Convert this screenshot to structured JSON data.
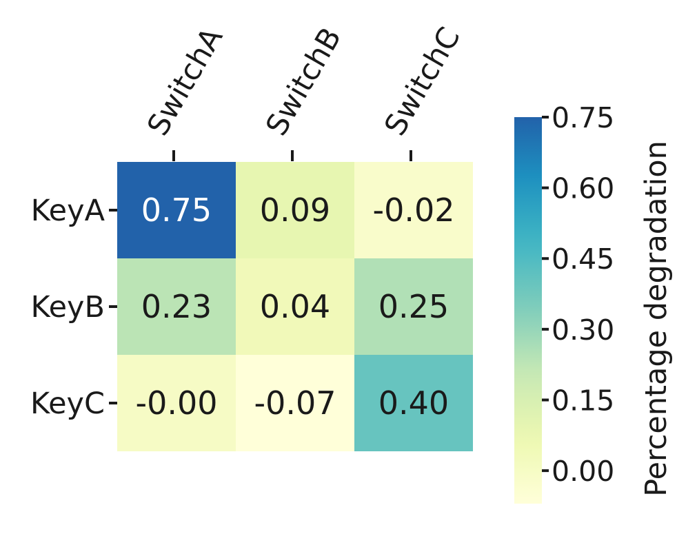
{
  "chart_data": {
    "type": "heatmap",
    "rows": [
      "KeyA",
      "KeyB",
      "KeyC"
    ],
    "columns": [
      "SwitchA",
      "SwitchB",
      "SwitchC"
    ],
    "values": [
      [
        0.75,
        0.09,
        -0.02
      ],
      [
        0.23,
        0.04,
        0.25
      ],
      [
        -0.0,
        -0.07,
        0.4
      ]
    ],
    "value_labels": [
      [
        "0.75",
        "0.09",
        "-0.02"
      ],
      [
        "0.23",
        "0.04",
        "0.25"
      ],
      [
        "-0.00",
        "-0.07",
        "0.40"
      ]
    ],
    "colormap": "YlGnBu",
    "colorbar": {
      "label": "Percentage degradation",
      "range": [
        -0.07,
        0.75
      ],
      "ticks": [
        0.0,
        0.15,
        0.3,
        0.45,
        0.6,
        0.75
      ],
      "tick_labels": [
        "0.00",
        "0.15",
        "0.30",
        "0.45",
        "0.60",
        "0.75"
      ],
      "placement": "right"
    },
    "grid": false
  }
}
